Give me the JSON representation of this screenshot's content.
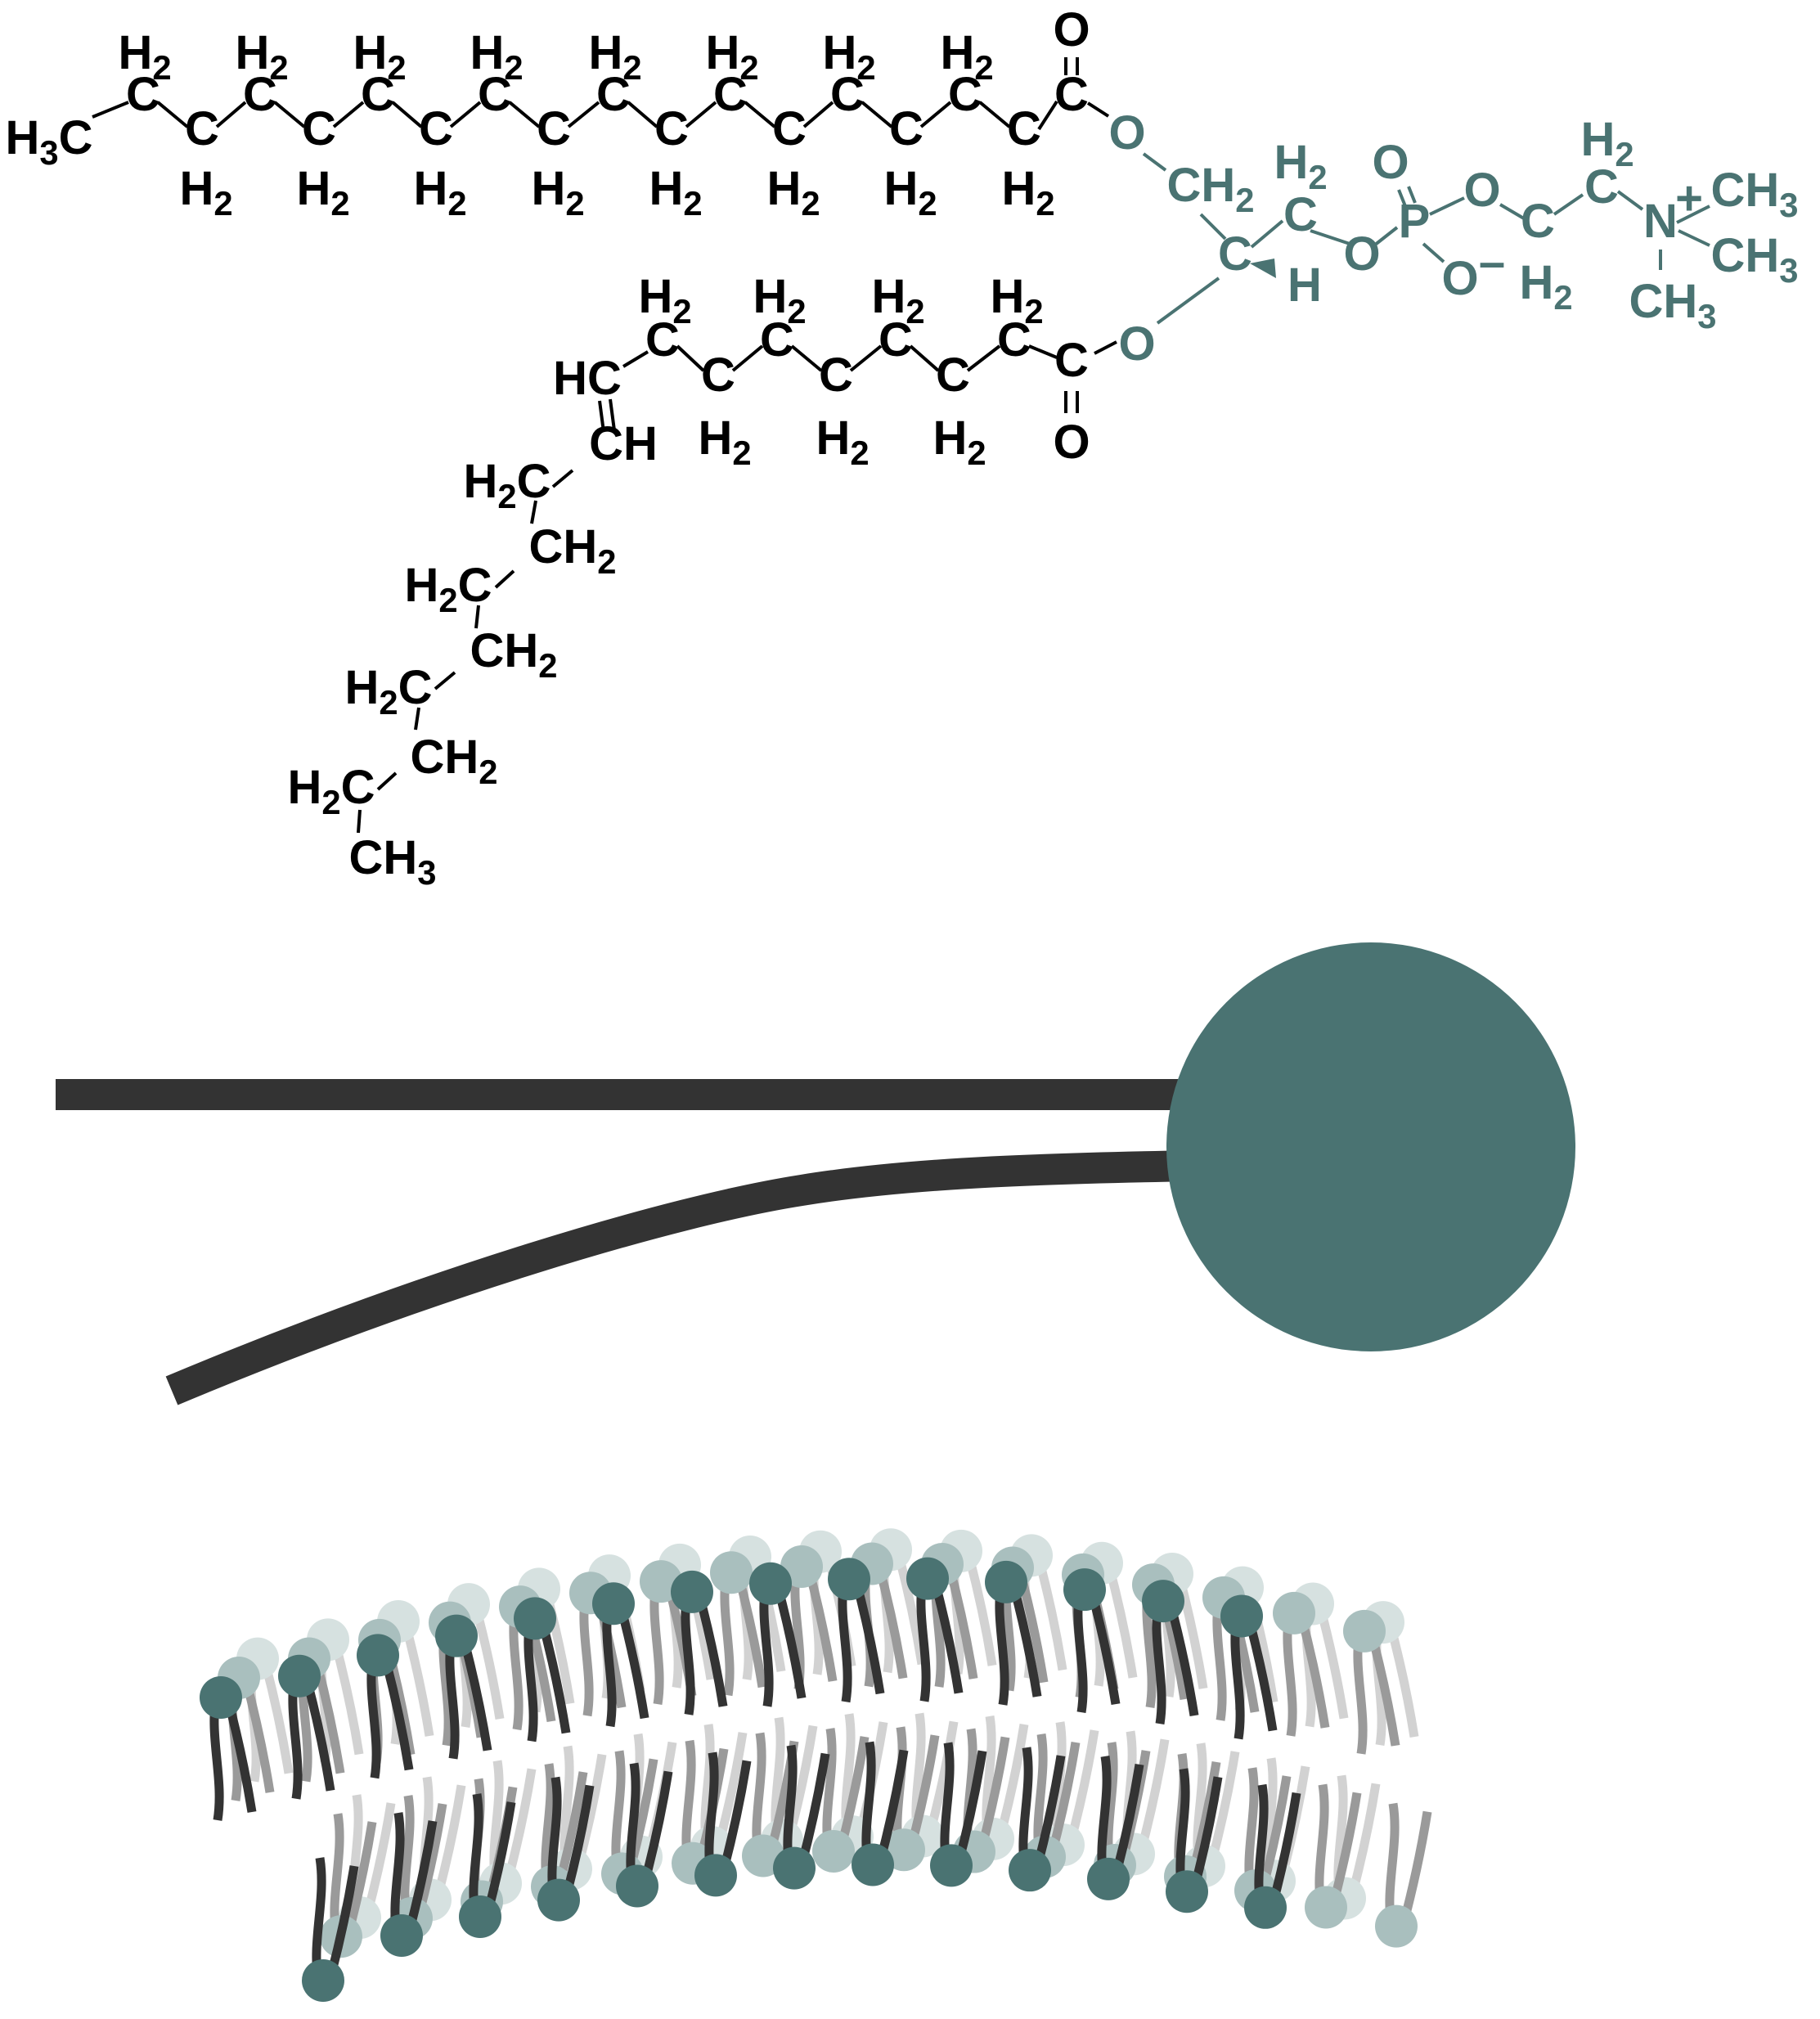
{
  "colors": {
    "tail": "#333333",
    "ink": "#000000",
    "head": "#4a7372",
    "head_light": "#a9bfbe",
    "head_faint": "#d6e1e0"
  },
  "molecule": {
    "h3c": "H3C",
    "ch2": "CH2",
    "ch3": "CH3",
    "h2c": "H2C",
    "h2": "H2",
    "c": "C",
    "o": "O",
    "p": "P",
    "n": "N",
    "h": "H",
    "hc": "HC",
    "ch": "CH",
    "plus": "+",
    "minus": "–"
  },
  "schematic": {
    "head_icon": "lipid-head-circle",
    "tail_icon": "lipid-tail-lines"
  },
  "bilayer": {
    "icon": "curved-lipid-bilayer"
  }
}
